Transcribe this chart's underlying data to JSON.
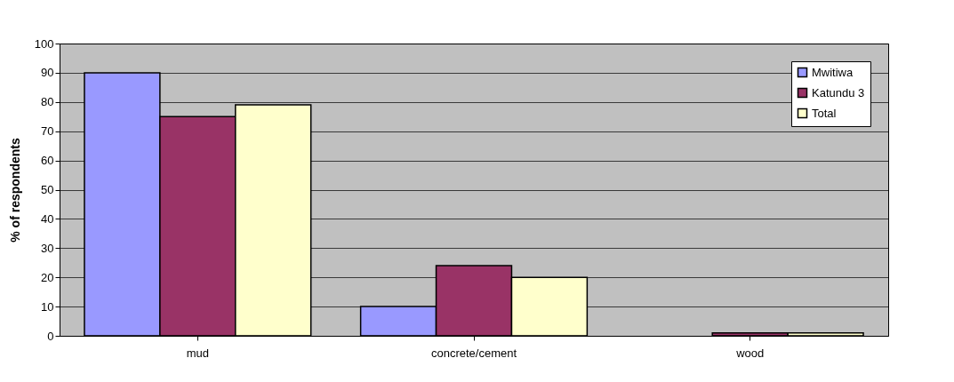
{
  "chart_data": {
    "type": "bar",
    "ylabel": "% of respondents",
    "categories": [
      "mud",
      "concrete/cement",
      "wood"
    ],
    "series": [
      {
        "name": "Mwitiwa",
        "color": "#9999ff",
        "values": [
          90,
          10,
          null
        ]
      },
      {
        "name": "Katundu 3",
        "color": "#993366",
        "values": [
          75,
          24,
          1
        ]
      },
      {
        "name": "Total",
        "color": "#ffffcc",
        "values": [
          79,
          20,
          1
        ]
      }
    ],
    "ylim": [
      0,
      100
    ],
    "yticks": [
      0,
      10,
      20,
      30,
      40,
      50,
      60,
      70,
      80,
      90,
      100
    ],
    "grid": "y",
    "legend": "top right"
  }
}
